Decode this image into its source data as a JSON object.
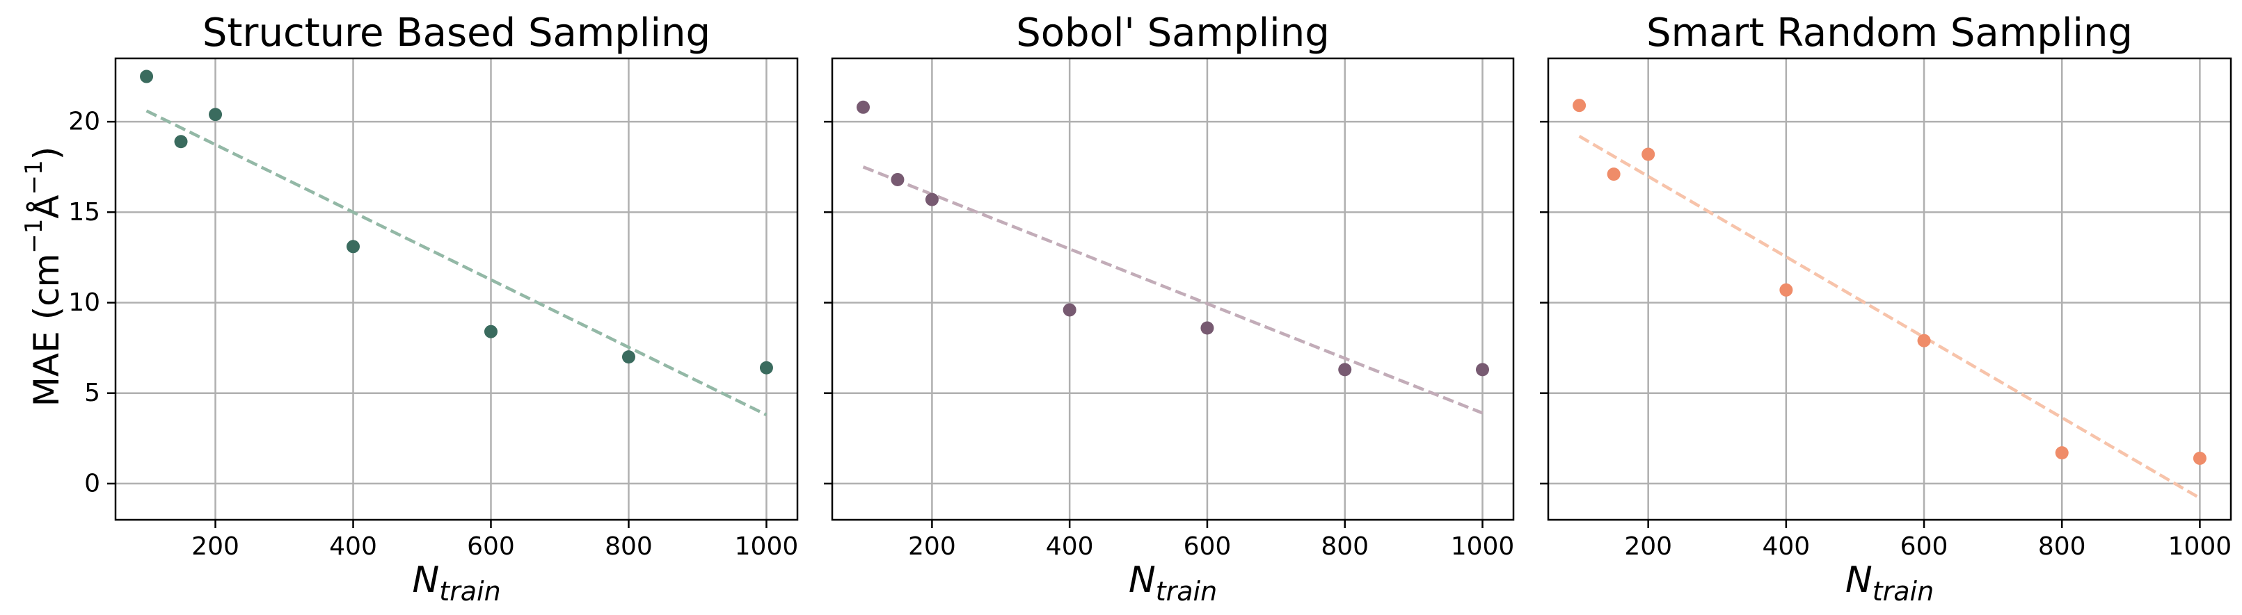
{
  "figure": {
    "ylabel": "MAE (cm⁻¹Å⁻¹)",
    "ylabel_main": "MAE (cm",
    "ylabel_sup1": "−1",
    "ylabel_mid": "Å",
    "ylabel_sup2": "−1",
    "ylabel_end": ")",
    "sharey": true
  },
  "chart_data": [
    {
      "type": "scatter",
      "title": "Structure Based Sampling",
      "xlabel": "N_train",
      "xlabel_main": "N",
      "xlabel_sub": "train",
      "xlim": [
        55,
        1045
      ],
      "ylim": [
        -2,
        23.5
      ],
      "xticks": [
        200,
        400,
        600,
        800,
        1000
      ],
      "yticks": [
        0,
        5,
        10,
        15,
        20
      ],
      "grid": true,
      "point_color": "#3a6b5e",
      "trend_color": "#93b8a6",
      "x": [
        100,
        150,
        200,
        400,
        600,
        800,
        1000
      ],
      "y": [
        22.5,
        18.9,
        20.4,
        13.1,
        8.4,
        7.0,
        6.4
      ],
      "trend": {
        "x": [
          100,
          1000
        ],
        "y": [
          20.6,
          3.8
        ]
      }
    },
    {
      "type": "scatter",
      "title": "Sobol' Sampling",
      "xlabel": "N_train",
      "xlabel_main": "N",
      "xlabel_sub": "train",
      "xlim": [
        55,
        1045
      ],
      "ylim": [
        -2,
        23.5
      ],
      "xticks": [
        200,
        400,
        600,
        800,
        1000
      ],
      "yticks": [
        0,
        5,
        10,
        15,
        20
      ],
      "grid": true,
      "point_color": "#775a71",
      "trend_color": "#c2acb8",
      "x": [
        100,
        150,
        200,
        400,
        600,
        800,
        1000
      ],
      "y": [
        20.8,
        16.8,
        15.7,
        9.6,
        8.6,
        6.3,
        6.3
      ],
      "trend": {
        "x": [
          100,
          1000
        ],
        "y": [
          17.5,
          3.9
        ]
      }
    },
    {
      "type": "scatter",
      "title": "Smart Random Sampling",
      "xlabel": "N_train",
      "xlabel_main": "N",
      "xlabel_sub": "train",
      "xlim": [
        55,
        1045
      ],
      "ylim": [
        -2,
        23.5
      ],
      "xticks": [
        200,
        400,
        600,
        800,
        1000
      ],
      "yticks": [
        0,
        5,
        10,
        15,
        20
      ],
      "grid": true,
      "point_color": "#ef8c69",
      "trend_color": "#f7c3aa",
      "x": [
        100,
        150,
        200,
        400,
        600,
        800,
        1000
      ],
      "y": [
        20.9,
        17.1,
        18.2,
        10.7,
        7.9,
        1.7,
        1.4
      ],
      "trend": {
        "x": [
          100,
          1000
        ],
        "y": [
          19.2,
          -0.8
        ]
      }
    }
  ]
}
